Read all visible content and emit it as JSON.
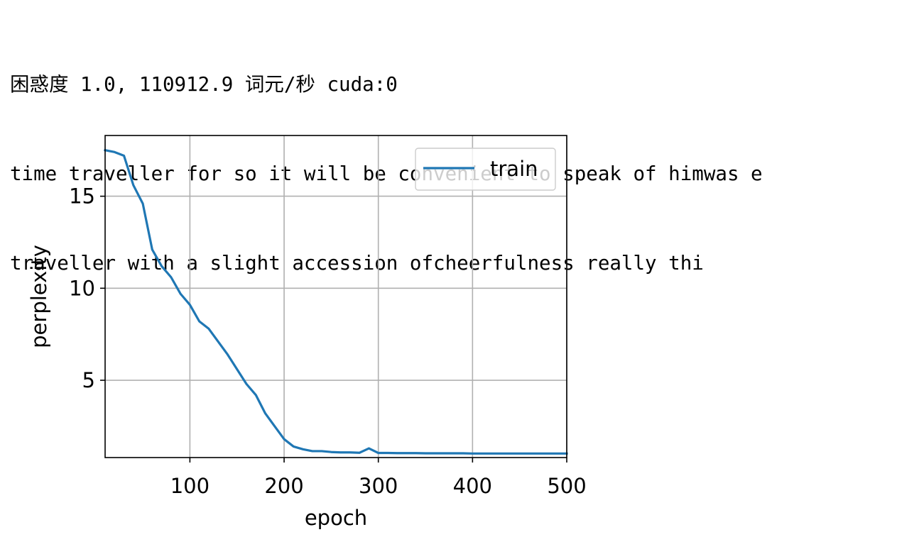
{
  "output_lines": [
    "困惑度 1.0, 110912.9 词元/秒 cuda:0",
    "time traveller for so it will be convenient to speak of himwas e",
    "traveller with a slight accession ofcheerfulness really thi"
  ],
  "chart_data": {
    "type": "line",
    "title": "",
    "xlabel": "epoch",
    "ylabel": "perplexity",
    "xlim": [
      10,
      500
    ],
    "ylim": [
      0.8,
      18.3
    ],
    "xticks": [
      100,
      200,
      300,
      400,
      500
    ],
    "yticks": [
      5,
      10,
      15
    ],
    "grid": true,
    "legend_position": "top-right",
    "series": [
      {
        "name": "train",
        "color": "#1f77b4",
        "x": [
          10,
          20,
          30,
          40,
          50,
          60,
          70,
          80,
          90,
          100,
          110,
          120,
          130,
          140,
          150,
          160,
          170,
          180,
          190,
          200,
          210,
          220,
          230,
          240,
          250,
          260,
          270,
          280,
          290,
          300,
          310,
          320,
          330,
          340,
          350,
          360,
          370,
          380,
          390,
          400,
          410,
          420,
          430,
          440,
          450,
          460,
          470,
          480,
          490,
          500
        ],
        "y": [
          17.5,
          17.4,
          17.2,
          15.6,
          14.6,
          12.1,
          11.2,
          10.6,
          9.7,
          9.1,
          8.2,
          7.8,
          7.1,
          6.4,
          5.6,
          4.8,
          4.2,
          3.2,
          2.5,
          1.8,
          1.4,
          1.25,
          1.15,
          1.15,
          1.1,
          1.08,
          1.08,
          1.06,
          1.3,
          1.05,
          1.05,
          1.04,
          1.04,
          1.04,
          1.03,
          1.03,
          1.03,
          1.03,
          1.03,
          1.02,
          1.02,
          1.02,
          1.02,
          1.02,
          1.02,
          1.02,
          1.02,
          1.02,
          1.02,
          1.02
        ]
      }
    ]
  }
}
